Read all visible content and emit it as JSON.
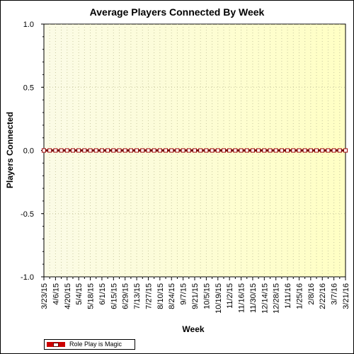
{
  "chart_data": {
    "type": "line",
    "title": "Average Players Connected By Week",
    "xlabel": "Week",
    "ylabel": "Players Connected",
    "ylim": [
      -1.0,
      1.0
    ],
    "yticks": [
      "1.0",
      "0.5",
      "0.0",
      "-0.5",
      "-1.0"
    ],
    "ytick_values": [
      1.0,
      0.5,
      0.0,
      -0.5,
      -1.0
    ],
    "x_tick_labels": [
      "3/23/15",
      "4/6/15",
      "4/20/15",
      "5/4/15",
      "5/18/15",
      "6/1/15",
      "6/15/15",
      "6/29/15",
      "7/13/15",
      "7/27/15",
      "8/10/15",
      "8/24/15",
      "9/7/15",
      "9/21/15",
      "10/5/15",
      "10/19/15",
      "11/2/15",
      "11/16/15",
      "11/30/15",
      "12/14/15",
      "12/28/15",
      "1/11/16",
      "1/25/16",
      "2/8/16",
      "2/22/16",
      "3/7/16",
      "3/21/16"
    ],
    "x": [
      "3/23/15",
      "3/30/15",
      "4/6/15",
      "4/13/15",
      "4/20/15",
      "4/27/15",
      "5/4/15",
      "5/11/15",
      "5/18/15",
      "5/25/15",
      "6/1/15",
      "6/8/15",
      "6/15/15",
      "6/22/15",
      "6/29/15",
      "7/6/15",
      "7/13/15",
      "7/20/15",
      "7/27/15",
      "8/3/15",
      "8/10/15",
      "8/17/15",
      "8/24/15",
      "8/31/15",
      "9/7/15",
      "9/14/15",
      "9/21/15",
      "9/28/15",
      "10/5/15",
      "10/12/15",
      "10/19/15",
      "10/26/15",
      "11/2/15",
      "11/9/15",
      "11/16/15",
      "11/23/15",
      "11/30/15",
      "12/7/15",
      "12/14/15",
      "12/21/15",
      "12/28/15",
      "1/4/16",
      "1/11/16",
      "1/18/16",
      "1/25/16",
      "2/1/16",
      "2/8/16",
      "2/15/16",
      "2/22/16",
      "2/29/16",
      "3/7/16",
      "3/14/16",
      "3/21/16"
    ],
    "series": [
      {
        "name": "Role Play is Magic",
        "color": "#cc0000",
        "values": [
          0,
          0,
          0,
          0,
          0,
          0,
          0,
          0,
          0,
          0,
          0,
          0,
          0,
          0,
          0,
          0,
          0,
          0,
          0,
          0,
          0,
          0,
          0,
          0,
          0,
          0,
          0,
          0,
          0,
          0,
          0,
          0,
          0,
          0,
          0,
          0,
          0,
          0,
          0,
          0,
          0,
          0,
          0,
          0,
          0,
          0,
          0,
          0,
          0,
          0,
          0,
          0,
          0
        ]
      }
    ],
    "grid": true,
    "legend_position": "bottom-left",
    "background": "yellow gradient"
  }
}
